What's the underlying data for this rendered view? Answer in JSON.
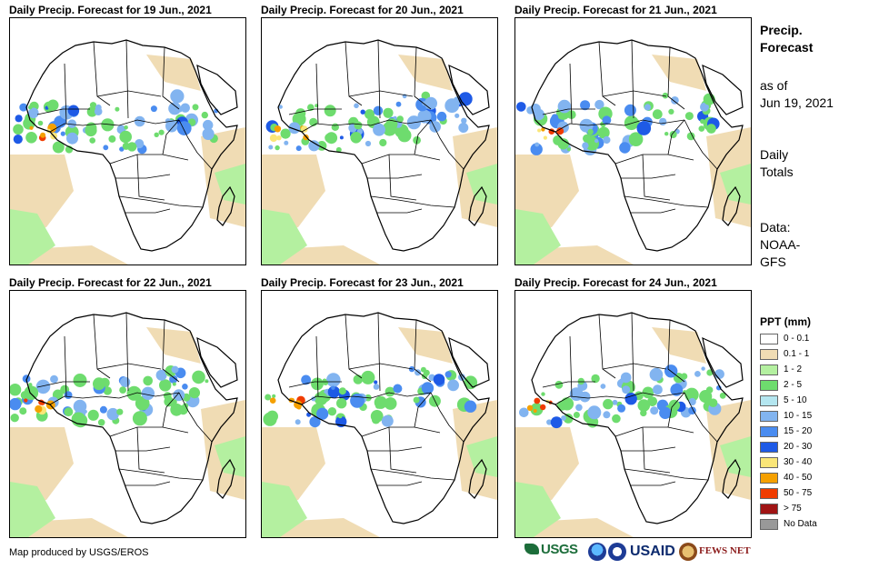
{
  "panels": [
    {
      "title": "Daily Precip. Forecast for 19 Jun., 2021"
    },
    {
      "title": "Daily Precip. Forecast for 20 Jun., 2021"
    },
    {
      "title": "Daily Precip. Forecast for 21 Jun., 2021"
    },
    {
      "title": "Daily Precip. Forecast for 22 Jun., 2021"
    },
    {
      "title": "Daily Precip. Forecast for 23 Jun., 2021"
    },
    {
      "title": "Daily Precip. Forecast for 24 Jun., 2021"
    }
  ],
  "side": {
    "title_line1": "Precip.",
    "title_line2": "Forecast",
    "asof_line1": "as of",
    "asof_line2": "Jun 19, 2021",
    "totals_line1": "Daily",
    "totals_line2": "Totals",
    "data_line1": "Data:",
    "data_line2": "NOAA-",
    "data_line3": "GFS"
  },
  "legend": {
    "title": "PPT (mm)",
    "items": [
      {
        "label": "0 - 0.1",
        "color": "#ffffff"
      },
      {
        "label": "0.1 - 1",
        "color": "#f0dcb4"
      },
      {
        "label": "1 - 2",
        "color": "#b4f0a0"
      },
      {
        "label": "2 - 5",
        "color": "#6edc6e"
      },
      {
        "label": "5 - 10",
        "color": "#b4e6f0"
      },
      {
        "label": "10 - 15",
        "color": "#82b4f0"
      },
      {
        "label": "15 - 20",
        "color": "#4a8cf0"
      },
      {
        "label": "20 - 30",
        "color": "#1e5ae6"
      },
      {
        "label": "30 - 40",
        "color": "#fae678"
      },
      {
        "label": "40 - 50",
        "color": "#f5a000"
      },
      {
        "label": "50 - 75",
        "color": "#f03c00"
      },
      {
        "label": "> 75",
        "color": "#a01414"
      },
      {
        "label": "No Data",
        "color": "#999999"
      }
    ]
  },
  "credit": "Map produced by USGS/EROS",
  "logos": {
    "usgs": "USGS",
    "usaid": "USAID",
    "fews": "FEWS NET"
  }
}
